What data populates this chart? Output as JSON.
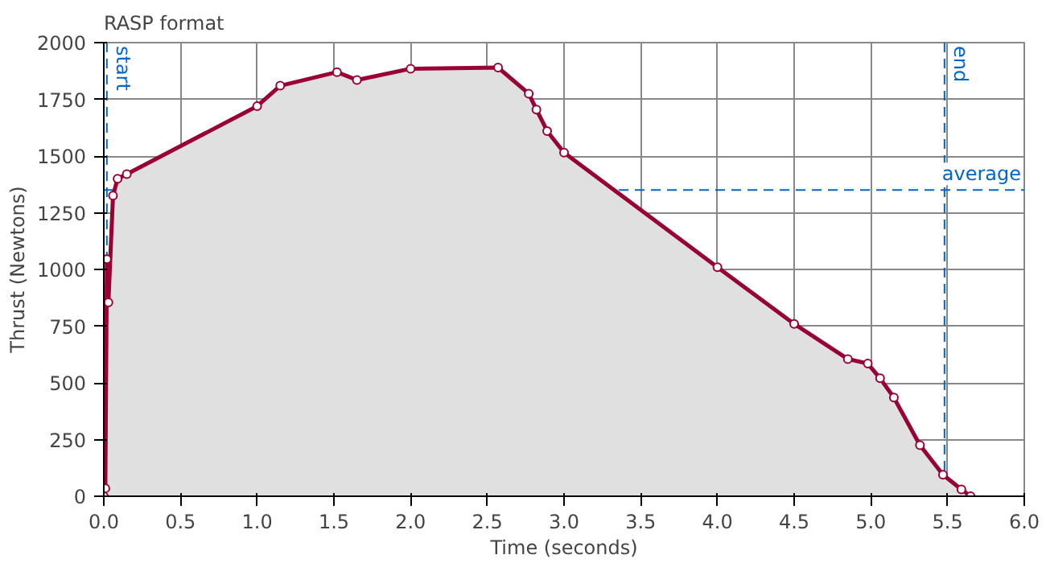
{
  "chart_data": {
    "type": "area",
    "title": "RASP format",
    "xlabel": "Time (seconds)",
    "ylabel": "Thrust (Newtons)",
    "x": [
      0.0,
      0.01,
      0.02,
      0.03,
      0.06,
      0.09,
      0.15,
      1.0,
      1.15,
      1.52,
      1.65,
      2.0,
      2.57,
      2.77,
      2.82,
      2.89,
      3.0,
      4.0,
      4.5,
      4.85,
      4.98,
      5.06,
      5.15,
      5.32,
      5.47,
      5.59,
      5.65
    ],
    "series": [
      {
        "color": "#990033",
        "values": [
          0,
          35,
          1045,
          855,
          1325,
          1400,
          1420,
          1720,
          1810,
          1870,
          1835,
          1885,
          1890,
          1775,
          1705,
          1610,
          1515,
          1010,
          760,
          605,
          585,
          520,
          435,
          225,
          95,
          30,
          0
        ]
      }
    ],
    "xlim": [
      0,
      6
    ],
    "ylim": [
      0,
      2000
    ],
    "xticks": [
      {
        "value": 0,
        "label": "0.0"
      },
      {
        "value": 0.5,
        "label": "0.5"
      },
      {
        "value": 1,
        "label": "1.0"
      },
      {
        "value": 1.5,
        "label": "1.5"
      },
      {
        "value": 2,
        "label": "2.0"
      },
      {
        "value": 2.5,
        "label": "2.5"
      },
      {
        "value": 3,
        "label": "3.0"
      },
      {
        "value": 3.5,
        "label": "3.5"
      },
      {
        "value": 4,
        "label": "4.0"
      },
      {
        "value": 4.5,
        "label": "4.5"
      },
      {
        "value": 5,
        "label": "5.0"
      },
      {
        "value": 5.5,
        "label": "5.5"
      },
      {
        "value": 6,
        "label": "6.0"
      }
    ],
    "yticks": [
      0,
      250,
      500,
      750,
      1000,
      1250,
      1500,
      1750,
      2000
    ],
    "ref_lines": [
      {
        "axis": "x",
        "value": 0.02,
        "label": "start",
        "color": "#0066cc",
        "line_style": "dashed"
      },
      {
        "axis": "x",
        "value": 5.48,
        "label": "end",
        "color": "#0066cc",
        "line_style": "dashed"
      },
      {
        "axis": "y",
        "value": 1350,
        "label": "average",
        "color": "#0066cc",
        "line_style": "dashed"
      }
    ],
    "grid": true,
    "marker": "circle"
  }
}
